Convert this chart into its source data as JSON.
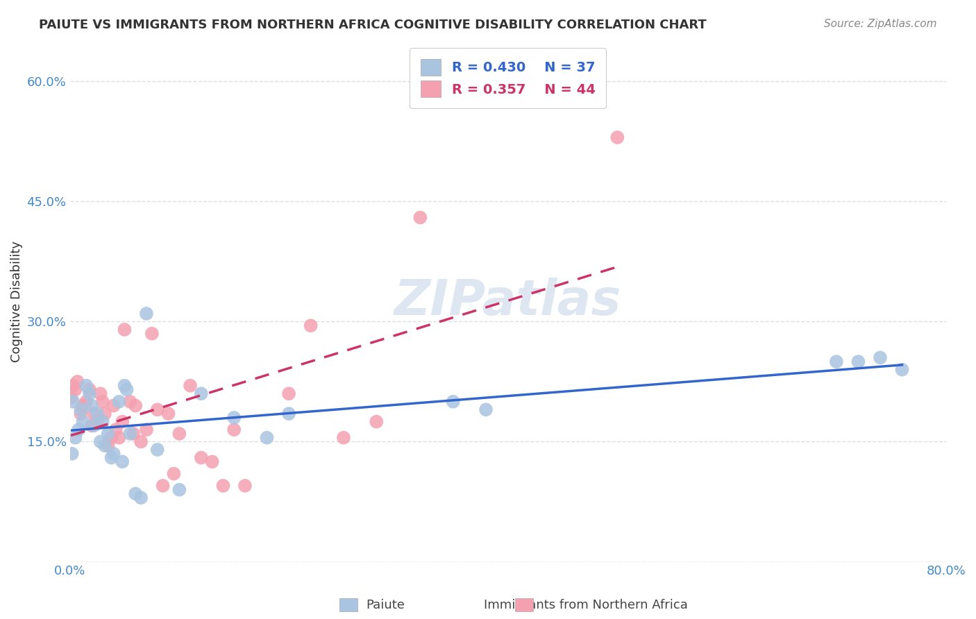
{
  "title": "PAIUTE VS IMMIGRANTS FROM NORTHERN AFRICA COGNITIVE DISABILITY CORRELATION CHART",
  "source": "Source: ZipAtlas.com",
  "ylabel": "Cognitive Disability",
  "xlim": [
    0.0,
    0.8
  ],
  "ylim": [
    0.0,
    0.65
  ],
  "xticks": [
    0.0,
    0.1,
    0.2,
    0.3,
    0.4,
    0.5,
    0.6,
    0.7,
    0.8
  ],
  "xticklabels": [
    "0.0%",
    "",
    "",
    "",
    "",
    "",
    "",
    "",
    "80.0%"
  ],
  "yticks": [
    0.0,
    0.15,
    0.3,
    0.45,
    0.6
  ],
  "yticklabels": [
    "",
    "15.0%",
    "30.0%",
    "45.0%",
    "60.0%"
  ],
  "grid_color": "#dddddd",
  "background_color": "#ffffff",
  "paiute_color": "#a8c4e0",
  "immigrant_color": "#f4a0b0",
  "paiute_line_color": "#3366cc",
  "immigrant_line_color": "#cc3366",
  "legend_R_paiute": "R = 0.430",
  "legend_N_paiute": "N = 37",
  "legend_R_immigrant": "R = 0.357",
  "legend_N_immigrant": "N = 44",
  "watermark": "ZIPatlas",
  "paiute_x": [
    0.003,
    0.008,
    0.012,
    0.015,
    0.002,
    0.005,
    0.01,
    0.018,
    0.02,
    0.025,
    0.022,
    0.03,
    0.035,
    0.028,
    0.032,
    0.04,
    0.038,
    0.045,
    0.05,
    0.048,
    0.052,
    0.055,
    0.06,
    0.065,
    0.07,
    0.08,
    0.1,
    0.12,
    0.15,
    0.18,
    0.2,
    0.35,
    0.38,
    0.7,
    0.72,
    0.74,
    0.76
  ],
  "paiute_y": [
    0.2,
    0.165,
    0.175,
    0.22,
    0.135,
    0.155,
    0.19,
    0.21,
    0.195,
    0.185,
    0.17,
    0.175,
    0.16,
    0.15,
    0.145,
    0.135,
    0.13,
    0.2,
    0.22,
    0.125,
    0.215,
    0.16,
    0.085,
    0.08,
    0.31,
    0.14,
    0.09,
    0.21,
    0.18,
    0.155,
    0.185,
    0.2,
    0.19,
    0.25,
    0.25,
    0.255,
    0.24
  ],
  "immigrant_x": [
    0.001,
    0.003,
    0.005,
    0.007,
    0.01,
    0.012,
    0.015,
    0.018,
    0.02,
    0.022,
    0.025,
    0.028,
    0.03,
    0.032,
    0.035,
    0.038,
    0.04,
    0.042,
    0.045,
    0.048,
    0.05,
    0.055,
    0.058,
    0.06,
    0.065,
    0.07,
    0.075,
    0.08,
    0.085,
    0.09,
    0.095,
    0.1,
    0.11,
    0.12,
    0.13,
    0.14,
    0.15,
    0.16,
    0.2,
    0.22,
    0.25,
    0.28,
    0.32,
    0.5
  ],
  "immigrant_y": [
    0.205,
    0.22,
    0.215,
    0.225,
    0.185,
    0.195,
    0.2,
    0.215,
    0.17,
    0.185,
    0.175,
    0.21,
    0.2,
    0.185,
    0.145,
    0.155,
    0.195,
    0.165,
    0.155,
    0.175,
    0.29,
    0.2,
    0.16,
    0.195,
    0.15,
    0.165,
    0.285,
    0.19,
    0.095,
    0.185,
    0.11,
    0.16,
    0.22,
    0.13,
    0.125,
    0.095,
    0.165,
    0.095,
    0.21,
    0.295,
    0.155,
    0.175,
    0.43,
    0.53
  ]
}
